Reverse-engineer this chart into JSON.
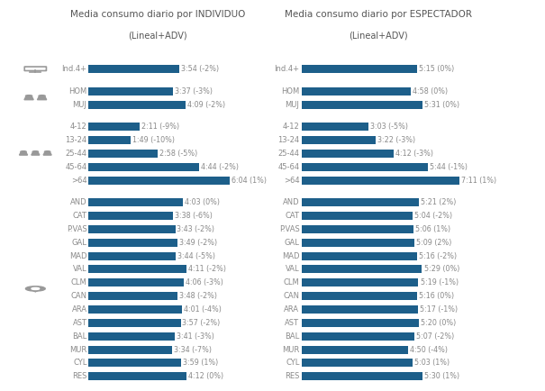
{
  "title_left_bold": "Media consumo diario por INDIVIDUO",
  "title_left_sub": "(Lineal+ADV)",
  "title_right_bold": "Media consumo diario por ESPECTADOR",
  "title_right_sub": "(Lineal+ADV)",
  "left_labels": [
    "Ind.4+",
    "HOM",
    "MUJ",
    "4-12",
    "13-24",
    "25-44",
    "45-64",
    ">64",
    "AND",
    "CAT",
    "P.VAS",
    "GAL",
    "MAD",
    "VAL",
    "CLM",
    "CAN",
    "ARA",
    "AST",
    "BAL",
    "MUR",
    "CYL",
    "RES"
  ],
  "left_values_min": [
    234,
    217,
    249,
    131,
    109,
    178,
    284,
    364,
    243,
    218,
    223,
    229,
    224,
    251,
    246,
    228,
    241,
    237,
    221,
    214,
    239,
    252
  ],
  "left_labels_text": [
    "3:54 (-2%)",
    "3:37 (-3%)",
    "4:09 (-2%)",
    "2:11 (-9%)",
    "1:49 (-10%)",
    "2:58 (-5%)",
    "4:44 (-2%)",
    "6:04 (1%)",
    "4:03 (0%)",
    "3:38 (-6%)",
    "3:43 (-2%)",
    "3:49 (-2%)",
    "3:44 (-5%)",
    "4:11 (-2%)",
    "4:06 (-3%)",
    "3:48 (-2%)",
    "4:01 (-4%)",
    "3:57 (-2%)",
    "3:41 (-3%)",
    "3:34 (-7%)",
    "3:59 (1%)",
    "4:12 (0%)"
  ],
  "right_labels": [
    "Ind.4+",
    "HOM",
    "MUJ",
    "4-12",
    "13-24",
    "25-44",
    "45-64",
    ">64",
    "AND",
    "CAT",
    "P.VAS",
    "GAL",
    "MAD",
    "VAL",
    "CLM",
    "CAN",
    "ARA",
    "AST",
    "BAL",
    "MUR",
    "CYL",
    "RES"
  ],
  "right_values_min": [
    315,
    298,
    331,
    183,
    202,
    252,
    344,
    431,
    321,
    304,
    306,
    309,
    316,
    329,
    319,
    316,
    317,
    320,
    307,
    290,
    303,
    330
  ],
  "right_labels_text": [
    "5:15 (0%)",
    "4:58 (0%)",
    "5:31 (0%)",
    "3:03 (-5%)",
    "3:22 (-3%)",
    "4:12 (-3%)",
    "5:44 (-1%)",
    "7:11 (1%)",
    "5:21 (2%)",
    "5:04 (-2%)",
    "5:06 (1%)",
    "5:09 (2%)",
    "5:16 (-2%)",
    "5:29 (0%)",
    "5:19 (-1%)",
    "5:16 (0%)",
    "5:17 (-1%)",
    "5:20 (0%)",
    "5:07 (-2%)",
    "4:50 (-4%)",
    "5:03 (1%)",
    "5:30 (1%)"
  ],
  "bar_color": "#1d5f8a",
  "text_color": "#8a8a8a",
  "title_color": "#555555",
  "bg_color": "#ffffff",
  "bar_height": 0.6,
  "label_fontsize": 6.0,
  "value_fontsize": 5.8,
  "title_fontsize": 7.5,
  "subtitle_fontsize": 7.0
}
